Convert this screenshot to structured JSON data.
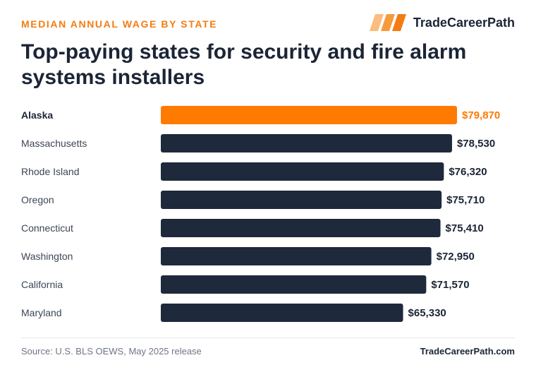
{
  "header": {
    "kicker": "MEDIAN ANNUAL WAGE BY STATE",
    "brand": "TradeCareerPath",
    "brand_icon": "slanted-stripes-logo-icon"
  },
  "chart_data": {
    "type": "bar",
    "orientation": "horizontal",
    "title": "Top-paying states for security and fire alarm systems installers",
    "categories": [
      "Alaska",
      "Massachusetts",
      "Rhode Island",
      "Oregon",
      "Connecticut",
      "Washington",
      "California",
      "Maryland"
    ],
    "values": [
      79870,
      78530,
      76320,
      75710,
      75410,
      72950,
      71570,
      65330
    ],
    "value_labels": [
      "$79,870",
      "$78,530",
      "$76,320",
      "$75,710",
      "$75,410",
      "$72,950",
      "$71,570",
      "$65,330"
    ],
    "highlight_index": 0,
    "highlight_color": "#ff7a00",
    "bar_color": "#1e293b",
    "xlabel": "",
    "ylabel": "",
    "grid": false
  },
  "footer": {
    "source": "Source: U.S. BLS OEWS, May 2025 release",
    "brand_url": "TradeCareerPath.com"
  },
  "colors": {
    "accent": "#f47c12",
    "dark": "#1b2536",
    "muted": "#6e7686"
  }
}
